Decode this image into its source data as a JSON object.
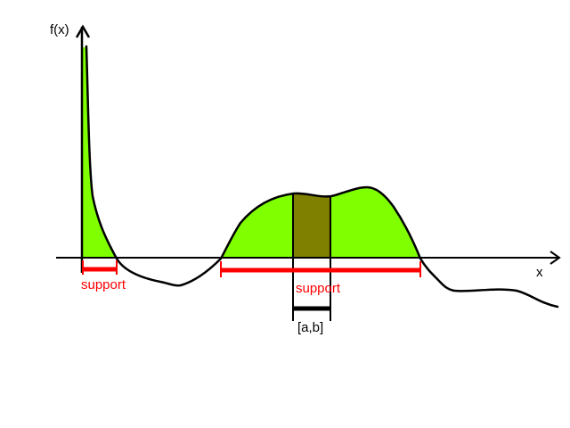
{
  "labels": {
    "y_axis": "f(x)",
    "x_axis": "x",
    "support_left": "support",
    "support_right": "support",
    "interval": "[a,b]"
  },
  "colors": {
    "curve": "#000000",
    "fill": "#7fff00",
    "interval_fill": "#808000",
    "support": "#ff0000",
    "interval_bar": "#000000"
  }
}
